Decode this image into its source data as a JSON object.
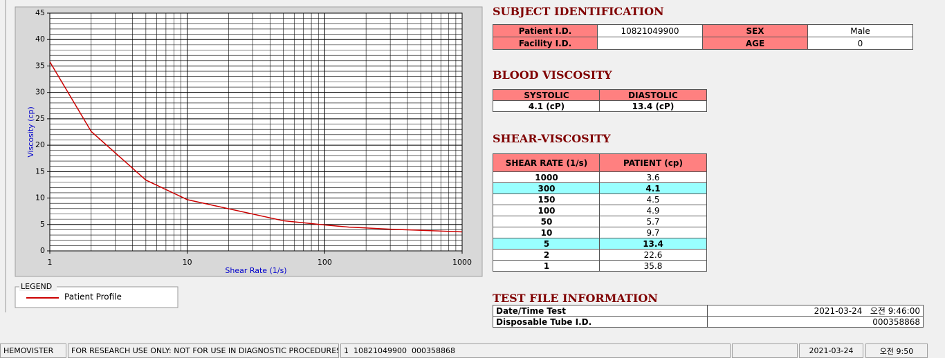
{
  "chart_data": {
    "type": "line",
    "log_x": true,
    "grid": true,
    "x": [
      1,
      2,
      5,
      10,
      50,
      100,
      150,
      300,
      1000
    ],
    "series": [
      {
        "name": "Patient Profile",
        "color": "#cc0000",
        "values": [
          35.8,
          22.6,
          13.4,
          9.7,
          5.7,
          4.9,
          4.5,
          4.1,
          3.6
        ]
      }
    ],
    "xlim": [
      1,
      1000
    ],
    "xticks": [
      1,
      10,
      100,
      1000
    ],
    "ylim": [
      0,
      45
    ],
    "yticks": [
      0,
      5,
      10,
      15,
      20,
      25,
      30,
      35,
      40,
      45
    ],
    "xlabel": "Shear Rate (1/s)",
    "ylabel": "Viscosity (cp)",
    "legend_title": "LEGEND"
  },
  "subject_identification": {
    "title": "SUBJECT IDENTIFICATION",
    "patient_id_label": "Patient I.D.",
    "patient_id": "10821049900",
    "sex_label": "SEX",
    "sex": "Male",
    "facility_id_label": "Facility I.D.",
    "age_label": "AGE",
    "age": "0"
  },
  "blood_viscosity": {
    "title": "BLOOD VISCOSITY",
    "headers": [
      "SYSTOLIC",
      "DIASTOLIC"
    ],
    "values": [
      "4.1 (cP)",
      "13.4 (cP)"
    ]
  },
  "shear_viscosity": {
    "title": "SHEAR-VISCOSITY",
    "headers": [
      "SHEAR RATE (1/s)",
      "PATIENT (cp)"
    ],
    "rows": [
      [
        "1000",
        "3.6"
      ],
      [
        "300",
        "4.1"
      ],
      [
        "150",
        "4.5"
      ],
      [
        "100",
        "4.9"
      ],
      [
        "50",
        "5.7"
      ],
      [
        "10",
        "9.7"
      ],
      [
        "5",
        "13.4"
      ],
      [
        "2",
        "22.6"
      ],
      [
        "1",
        "35.8"
      ]
    ],
    "highlighted_rows": [
      1,
      6
    ],
    "highlight_color": "#99ffff"
  },
  "test_file_information": {
    "title": "TEST FILE INFORMATION",
    "rows": [
      [
        "Date/Time Test",
        "2021-03-24   오전 9:46:00"
      ],
      [
        "Disposable Tube I.D.",
        "000358868"
      ]
    ]
  },
  "status_bar": {
    "app": "HEMOVISTER",
    "notice": "FOR RESEARCH USE ONLY: NOT FOR USE IN DIAGNOSTIC PROCEDURES",
    "record": "1  10821049900  000358868",
    "date": "2021-03-24",
    "time": "오전 9:50"
  }
}
